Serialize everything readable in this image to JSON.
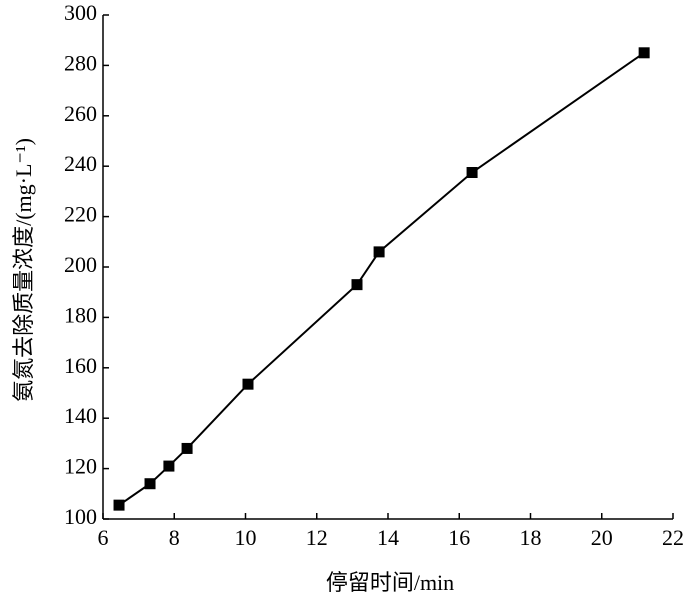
{
  "chart_data": {
    "type": "line",
    "x_label": "停留时间/min",
    "y_label": "氨氮去除质量浓度/(mg·L⁻¹)",
    "x": [
      6.45,
      7.32,
      7.85,
      8.36,
      10.07,
      13.13,
      13.75,
      16.36,
      21.19
    ],
    "values": [
      105.5,
      114,
      121,
      128,
      153.5,
      193,
      206,
      237.5,
      285
    ],
    "color": "#000000",
    "xlim": [
      6,
      22
    ],
    "xticks": [
      6,
      8,
      10,
      12,
      14,
      16,
      18,
      20,
      22
    ],
    "ylim": [
      100,
      300
    ],
    "yticks": [
      100,
      120,
      140,
      160,
      180,
      200,
      220,
      240,
      260,
      280,
      300
    ],
    "grid": false
  }
}
